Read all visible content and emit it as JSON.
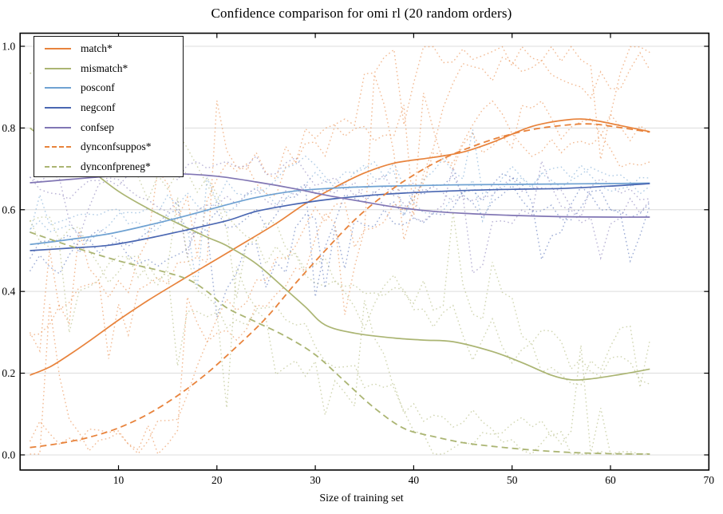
{
  "chart_data": {
    "type": "line",
    "title": "Confidence comparison for omi rl (20 random orders)",
    "xlabel": "Size of training set",
    "ylabel": "",
    "xlim": [
      0,
      70
    ],
    "ylim": [
      -0.037,
      1.032
    ],
    "xticks": [
      10,
      20,
      30,
      40,
      50,
      60,
      70
    ],
    "yticks": [
      0.0,
      0.2,
      0.4,
      0.6,
      0.8,
      1.0
    ],
    "ytick_labels": [
      "0.0",
      "0.2",
      "0.4",
      "0.6",
      "0.8",
      "1.0"
    ],
    "grid": "horizontal",
    "grid_color": "#dcdcdc",
    "spine_color": "#000000",
    "background": "#ffffff",
    "legend_position": "upper left",
    "runs_per_series": 2,
    "runs_style": {
      "dash": "1.6 3.4",
      "width": 1.4,
      "alpha": 0.55
    },
    "series": [
      {
        "name": "match",
        "label": "match*",
        "color": "#e8833c",
        "style": "solid",
        "runs": {
          "gain": 1.25,
          "offset": 0.0,
          "noise": 0.09
        },
        "points": [
          [
            1,
            0.195
          ],
          [
            3,
            0.215
          ],
          [
            5,
            0.245
          ],
          [
            7,
            0.278
          ],
          [
            10,
            0.33
          ],
          [
            13,
            0.378
          ],
          [
            16,
            0.422
          ],
          [
            19,
            0.465
          ],
          [
            22,
            0.508
          ],
          [
            26,
            0.566
          ],
          [
            29,
            0.615
          ],
          [
            32,
            0.655
          ],
          [
            35,
            0.69
          ],
          [
            38,
            0.714
          ],
          [
            42,
            0.728
          ],
          [
            45,
            0.741
          ],
          [
            48,
            0.765
          ],
          [
            51,
            0.795
          ],
          [
            53,
            0.81
          ],
          [
            56,
            0.821
          ],
          [
            58,
            0.82
          ],
          [
            61,
            0.806
          ],
          [
            64,
            0.791
          ]
        ]
      },
      {
        "name": "mismatch",
        "label": "mismatch*",
        "color": "#abb573",
        "style": "solid",
        "runs": {
          "gain": 1.22,
          "offset": 0.0,
          "noise": 0.09
        },
        "points": [
          [
            1,
            0.8
          ],
          [
            3,
            0.765
          ],
          [
            5,
            0.735
          ],
          [
            7,
            0.7
          ],
          [
            10,
            0.645
          ],
          [
            13,
            0.603
          ],
          [
            16,
            0.567
          ],
          [
            19,
            0.533
          ],
          [
            21,
            0.512
          ],
          [
            24,
            0.468
          ],
          [
            27,
            0.405
          ],
          [
            29,
            0.362
          ],
          [
            31,
            0.318
          ],
          [
            34,
            0.298
          ],
          [
            38,
            0.286
          ],
          [
            41,
            0.281
          ],
          [
            44,
            0.277
          ],
          [
            48,
            0.253
          ],
          [
            51,
            0.226
          ],
          [
            54,
            0.195
          ],
          [
            56,
            0.184
          ],
          [
            58,
            0.186
          ],
          [
            61,
            0.197
          ],
          [
            64,
            0.21
          ]
        ]
      },
      {
        "name": "posconf",
        "label": "posconf",
        "color": "#6fa2d2",
        "style": "solid",
        "runs": {
          "gain": 1.0,
          "offset": 0.01,
          "noise": 0.05
        },
        "points": [
          [
            1,
            0.515
          ],
          [
            5,
            0.527
          ],
          [
            9,
            0.541
          ],
          [
            13,
            0.562
          ],
          [
            17,
            0.586
          ],
          [
            21,
            0.612
          ],
          [
            24,
            0.63
          ],
          [
            28,
            0.646
          ],
          [
            32,
            0.653
          ],
          [
            36,
            0.657
          ],
          [
            40,
            0.659
          ],
          [
            45,
            0.661
          ],
          [
            50,
            0.662
          ],
          [
            55,
            0.663
          ],
          [
            60,
            0.664
          ],
          [
            64,
            0.665
          ]
        ]
      },
      {
        "name": "negconf",
        "label": "negconf",
        "color": "#4a67b2",
        "style": "solid",
        "runs": {
          "gain": 0.97,
          "offset": -0.02,
          "noise": 0.07
        },
        "points": [
          [
            1,
            0.5
          ],
          [
            5,
            0.506
          ],
          [
            9,
            0.513
          ],
          [
            13,
            0.53
          ],
          [
            17,
            0.551
          ],
          [
            21,
            0.573
          ],
          [
            24,
            0.596
          ],
          [
            28,
            0.614
          ],
          [
            32,
            0.627
          ],
          [
            36,
            0.636
          ],
          [
            40,
            0.642
          ],
          [
            45,
            0.647
          ],
          [
            50,
            0.65
          ],
          [
            55,
            0.652
          ],
          [
            60,
            0.658
          ],
          [
            64,
            0.664
          ]
        ]
      },
      {
        "name": "confsep",
        "label": "confsep",
        "color": "#8176b4",
        "style": "solid",
        "runs": {
          "gain": 1.0,
          "offset": 0.015,
          "noise": 0.055
        },
        "points": [
          [
            1,
            0.666
          ],
          [
            4,
            0.672
          ],
          [
            8,
            0.68
          ],
          [
            12,
            0.686
          ],
          [
            16,
            0.688
          ],
          [
            20,
            0.682
          ],
          [
            24,
            0.668
          ],
          [
            28,
            0.651
          ],
          [
            31,
            0.636
          ],
          [
            35,
            0.619
          ],
          [
            38,
            0.607
          ],
          [
            42,
            0.596
          ],
          [
            46,
            0.59
          ],
          [
            50,
            0.586
          ],
          [
            55,
            0.583
          ],
          [
            60,
            0.582
          ],
          [
            64,
            0.582
          ]
        ]
      },
      {
        "name": "dynconfsuppos",
        "label": "dynconfsuppos*",
        "color": "#e8833c",
        "style": "dashed",
        "runs": {
          "gain": 1.0,
          "offset": 0.0,
          "noise": 0.08
        },
        "points": [
          [
            1,
            0.018
          ],
          [
            4,
            0.028
          ],
          [
            7,
            0.043
          ],
          [
            10,
            0.066
          ],
          [
            13,
            0.1
          ],
          [
            16,
            0.145
          ],
          [
            19,
            0.2
          ],
          [
            22,
            0.265
          ],
          [
            25,
            0.335
          ],
          [
            28,
            0.42
          ],
          [
            31,
            0.5
          ],
          [
            34,
            0.575
          ],
          [
            37,
            0.636
          ],
          [
            40,
            0.685
          ],
          [
            43,
            0.725
          ],
          [
            46,
            0.755
          ],
          [
            49,
            0.779
          ],
          [
            52,
            0.796
          ],
          [
            55,
            0.806
          ],
          [
            58,
            0.81
          ],
          [
            61,
            0.801
          ],
          [
            64,
            0.79
          ]
        ]
      },
      {
        "name": "dynconfpreneg",
        "label": "dynconfpreneg*",
        "color": "#abb573",
        "style": "dashed",
        "runs": {
          "gain": 1.0,
          "offset": 0.0,
          "noise": 0.07
        },
        "points": [
          [
            1,
            0.545
          ],
          [
            5,
            0.512
          ],
          [
            10,
            0.475
          ],
          [
            14,
            0.452
          ],
          [
            17,
            0.43
          ],
          [
            19,
            0.4
          ],
          [
            21,
            0.36
          ],
          [
            24,
            0.325
          ],
          [
            27,
            0.29
          ],
          [
            30,
            0.245
          ],
          [
            33,
            0.18
          ],
          [
            36,
            0.115
          ],
          [
            39,
            0.065
          ],
          [
            42,
            0.045
          ],
          [
            45,
            0.03
          ],
          [
            48,
            0.021
          ],
          [
            52,
            0.012
          ],
          [
            56,
            0.006
          ],
          [
            60,
            0.003
          ],
          [
            64,
            0.002
          ]
        ]
      }
    ]
  }
}
